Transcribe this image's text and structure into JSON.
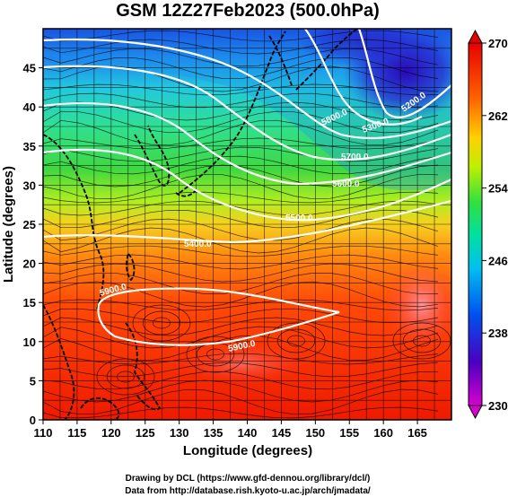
{
  "title": "GSM 12Z27Feb2023 (500.0hPa)",
  "x_axis": {
    "label": "Longitude (degrees)",
    "ticks": [
      "110",
      "115",
      "120",
      "125",
      "130",
      "135",
      "140",
      "145",
      "150",
      "155",
      "160",
      "165"
    ],
    "range": [
      110,
      170
    ]
  },
  "y_axis": {
    "label": "Latitude  (degrees)",
    "ticks": [
      "0",
      "5",
      "10",
      "15",
      "20",
      "25",
      "30",
      "35",
      "40",
      "45"
    ],
    "range": [
      0,
      50
    ]
  },
  "colorbar": {
    "ticks": [
      "230",
      "238",
      "246",
      "254",
      "262",
      "270"
    ],
    "range": [
      230,
      270
    ],
    "colors": [
      "#e000c8",
      "#3a00c8",
      "#0058f0",
      "#00c8f0",
      "#00e0a0",
      "#40e040",
      "#c8f000",
      "#ffd000",
      "#ff7000",
      "#ff2000",
      "#e00000"
    ]
  },
  "contour_labels": [
    "5200.0",
    "5300.0",
    "5400.0",
    "5500.0",
    "5600.0",
    "5700.0",
    "5800.0",
    "5900.0",
    "5900.0"
  ],
  "credits": {
    "line1": "Drawing by DCL (https://www.gfd-dennou.org/library/dcl/)",
    "line2": "Data from http://database.rish.kyoto-u.ac.jp/arch/jmadata/"
  }
}
